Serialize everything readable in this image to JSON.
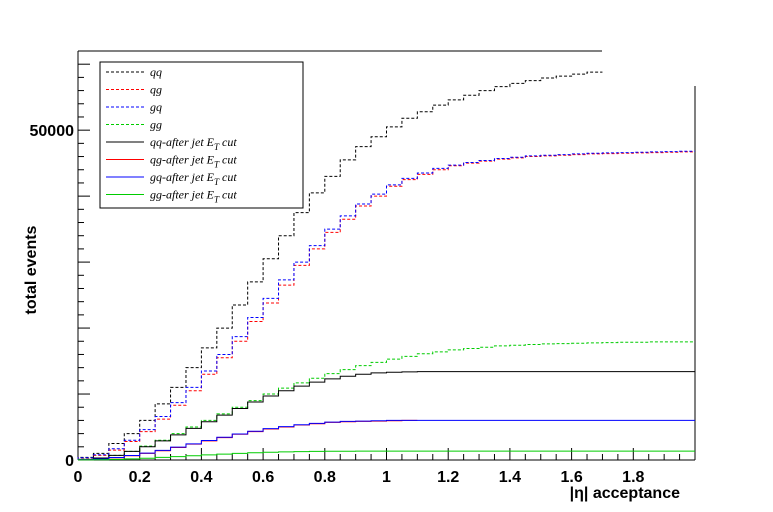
{
  "chart_data": {
    "type": "line",
    "xlabel": "|η|  acceptance",
    "ylabel": "total events",
    "xlim": [
      0,
      2
    ],
    "ylim": [
      0,
      62000
    ],
    "x_ticks": [
      "0",
      "0.2",
      "0.4",
      "0.6",
      "0.8",
      "1",
      "1.2",
      "1.4",
      "1.6",
      "1.8"
    ],
    "x_tick_values": [
      0,
      0.2,
      0.4,
      0.6,
      0.8,
      1.0,
      1.2,
      1.4,
      1.6,
      1.8
    ],
    "y_ticks": [
      "0",
      "50000"
    ],
    "y_tick_values": [
      0,
      50000
    ],
    "legend_position": "top-left",
    "series": [
      {
        "name": "qq",
        "color": "#000000",
        "dashed": true,
        "x": [
          0.05,
          0.1,
          0.15,
          0.2,
          0.25,
          0.3,
          0.35,
          0.4,
          0.45,
          0.5,
          0.55,
          0.6,
          0.65,
          0.7,
          0.75,
          0.8,
          0.85,
          0.9,
          0.95,
          1.0,
          1.05,
          1.1,
          1.15,
          1.2,
          1.25,
          1.3,
          1.35,
          1.4,
          1.45,
          1.5,
          1.55,
          1.6,
          1.65,
          1.7
        ],
        "y": [
          400,
          1000,
          2500,
          4000,
          6000,
          8500,
          11000,
          14000,
          17000,
          20000,
          23500,
          27000,
          30500,
          34000,
          37500,
          40500,
          43000,
          45500,
          47500,
          49000,
          50500,
          51800,
          52800,
          53800,
          54600,
          55300,
          56000,
          56600,
          57100,
          57500,
          57900,
          58200,
          58500,
          58800
        ]
      },
      {
        "name": "qg",
        "color": "#ff0000",
        "dashed": true,
        "x": [
          0.05,
          0.1,
          0.15,
          0.2,
          0.25,
          0.3,
          0.35,
          0.4,
          0.45,
          0.5,
          0.55,
          0.6,
          0.65,
          0.7,
          0.75,
          0.8,
          0.85,
          0.9,
          0.95,
          1.0,
          1.05,
          1.1,
          1.15,
          1.2,
          1.25,
          1.3,
          1.35,
          1.4,
          1.45,
          1.5,
          1.55,
          1.6,
          1.65,
          1.7,
          1.75,
          1.8,
          1.85,
          1.9,
          1.95,
          2.0
        ],
        "y": [
          300,
          700,
          1500,
          2800,
          4300,
          6200,
          8300,
          10500,
          13000,
          15500,
          18000,
          21000,
          23800,
          26500,
          29500,
          32000,
          34500,
          36500,
          38500,
          40000,
          41500,
          42500,
          43300,
          44000,
          44600,
          45000,
          45300,
          45600,
          45800,
          46000,
          46100,
          46200,
          46300,
          46400,
          46450,
          46500,
          46550,
          46600,
          46650,
          46700
        ]
      },
      {
        "name": "gq",
        "color": "#0000ff",
        "dashed": true,
        "x": [
          0.05,
          0.1,
          0.15,
          0.2,
          0.25,
          0.3,
          0.35,
          0.4,
          0.45,
          0.5,
          0.55,
          0.6,
          0.65,
          0.7,
          0.75,
          0.8,
          0.85,
          0.9,
          0.95,
          1.0,
          1.05,
          1.1,
          1.15,
          1.2,
          1.25,
          1.3,
          1.35,
          1.4,
          1.45,
          1.5,
          1.55,
          1.6,
          1.65,
          1.7,
          1.75,
          1.8,
          1.85,
          1.9,
          1.95,
          2.0
        ],
        "y": [
          350,
          800,
          1700,
          3000,
          4600,
          6600,
          8700,
          11000,
          13500,
          16000,
          18700,
          21600,
          24500,
          27300,
          30000,
          32500,
          35000,
          37000,
          38800,
          40300,
          41700,
          42700,
          43500,
          44200,
          44700,
          45100,
          45400,
          45700,
          45900,
          46100,
          46200,
          46300,
          46400,
          46500,
          46550,
          46600,
          46650,
          46700,
          46750,
          46800
        ]
      },
      {
        "name": "gg",
        "color": "#00cc00",
        "dashed": true,
        "x": [
          0.05,
          0.1,
          0.15,
          0.2,
          0.25,
          0.3,
          0.35,
          0.4,
          0.45,
          0.5,
          0.55,
          0.6,
          0.65,
          0.7,
          0.75,
          0.8,
          0.85,
          0.9,
          0.95,
          1.0,
          1.05,
          1.1,
          1.15,
          1.2,
          1.25,
          1.3,
          1.35,
          1.4,
          1.45,
          1.5,
          1.55,
          1.6,
          1.65,
          1.7,
          1.75,
          1.8,
          1.85,
          1.9,
          1.95,
          2.0
        ],
        "y": [
          100,
          300,
          700,
          1300,
          2100,
          3000,
          4000,
          5000,
          6000,
          7000,
          8000,
          9000,
          10000,
          10900,
          11700,
          12400,
          13100,
          13700,
          14300,
          14800,
          15300,
          15700,
          16100,
          16400,
          16700,
          16900,
          17100,
          17300,
          17400,
          17500,
          17600,
          17650,
          17700,
          17750,
          17800,
          17850,
          17850,
          17900,
          17900,
          17900
        ]
      },
      {
        "name": "qq-after jet E_T cut",
        "color": "#000000",
        "dashed": false,
        "x": [
          0.05,
          0.1,
          0.15,
          0.2,
          0.25,
          0.3,
          0.35,
          0.4,
          0.45,
          0.5,
          0.55,
          0.6,
          0.65,
          0.7,
          0.75,
          0.8,
          0.85,
          0.9,
          0.95,
          1.0,
          1.05,
          1.1,
          1.15,
          1.2,
          1.25,
          1.3,
          1.35,
          1.4,
          1.45,
          1.5,
          1.55,
          1.6,
          1.65,
          1.7,
          1.75,
          1.8,
          1.85,
          1.9,
          1.95,
          2.0
        ],
        "y": [
          100,
          300,
          700,
          1300,
          2000,
          2900,
          3800,
          4800,
          5800,
          6800,
          7800,
          8800,
          9700,
          10500,
          11200,
          11800,
          12300,
          12700,
          13000,
          13200,
          13300,
          13350,
          13400,
          13400,
          13400,
          13400,
          13400,
          13400,
          13400,
          13400,
          13400,
          13400,
          13400,
          13400,
          13400,
          13400,
          13400,
          13400,
          13400,
          13400
        ]
      },
      {
        "name": "qg-after jet E_T cut",
        "color": "#ff0000",
        "dashed": false,
        "x": [
          0.05,
          0.1,
          0.15,
          0.2,
          0.25,
          0.3,
          0.35,
          0.4,
          0.45,
          0.5,
          0.55,
          0.6,
          0.65,
          0.7,
          0.75,
          0.8,
          0.85,
          0.9,
          0.95,
          1.0,
          1.05,
          1.1
        ],
        "y": [
          50,
          150,
          350,
          650,
          1000,
          1400,
          1900,
          2400,
          2900,
          3400,
          3900,
          4300,
          4700,
          5000,
          5300,
          5500,
          5700,
          5800,
          5850,
          5900,
          5950,
          6000
        ]
      },
      {
        "name": "gq-after jet E_T cut",
        "color": "#0000ff",
        "dashed": false,
        "x": [
          0.05,
          0.1,
          0.15,
          0.2,
          0.25,
          0.3,
          0.35,
          0.4,
          0.45,
          0.5,
          0.55,
          0.6,
          0.65,
          0.7,
          0.75,
          0.8,
          0.85,
          0.9,
          0.95,
          1.0,
          1.05,
          1.1,
          1.15,
          1.2,
          1.25,
          1.3,
          1.35,
          1.4,
          1.45,
          1.5,
          1.55,
          1.6,
          1.65,
          1.7,
          1.75,
          1.8,
          1.85,
          1.9,
          1.95,
          2.0
        ],
        "y": [
          60,
          160,
          370,
          680,
          1050,
          1450,
          1950,
          2450,
          2950,
          3450,
          3950,
          4350,
          4750,
          5050,
          5350,
          5550,
          5750,
          5850,
          5900,
          5950,
          6000,
          6000,
          6000,
          6000,
          6000,
          6000,
          6000,
          6000,
          6000,
          6000,
          6000,
          6000,
          6000,
          6000,
          6000,
          6000,
          6000,
          6000,
          6000,
          6000
        ]
      },
      {
        "name": "gg-after jet E_T cut",
        "color": "#00cc00",
        "dashed": false,
        "x": [
          0.05,
          0.1,
          0.15,
          0.2,
          0.25,
          0.3,
          0.35,
          0.4,
          0.45,
          0.5,
          0.55,
          0.6,
          0.65,
          0.7,
          0.75,
          0.8,
          0.85,
          0.9,
          0.95,
          1.0,
          1.05,
          1.1,
          1.15,
          1.2,
          1.25,
          1.3,
          1.35,
          1.4,
          1.45,
          1.5,
          1.55,
          1.6,
          1.65,
          1.7,
          1.75,
          1.8,
          1.85,
          1.9,
          1.95,
          2.0
        ],
        "y": [
          10,
          40,
          90,
          170,
          270,
          390,
          520,
          650,
          780,
          900,
          1010,
          1100,
          1170,
          1230,
          1270,
          1300,
          1320,
          1330,
          1340,
          1340,
          1340,
          1340,
          1340,
          1340,
          1340,
          1340,
          1340,
          1340,
          1340,
          1340,
          1340,
          1340,
          1340,
          1340,
          1340,
          1340,
          1340,
          1340,
          1340,
          1340
        ]
      }
    ],
    "legend": [
      {
        "base": "qq",
        "suffix": "",
        "color": "#000000",
        "dashed": true
      },
      {
        "base": "qg",
        "suffix": "",
        "color": "#ff0000",
        "dashed": true
      },
      {
        "base": "gq",
        "suffix": "",
        "color": "#0000ff",
        "dashed": true
      },
      {
        "base": "gg",
        "suffix": "",
        "color": "#00cc00",
        "dashed": true
      },
      {
        "base": "qq-after jet E",
        "sub": "T",
        "suffix": " cut",
        "color": "#000000",
        "dashed": false
      },
      {
        "base": "qg-after jet E",
        "sub": "T",
        "suffix": " cut",
        "color": "#ff0000",
        "dashed": false
      },
      {
        "base": "gq-after jet E",
        "sub": "T",
        "suffix": " cut",
        "color": "#0000ff",
        "dashed": false
      },
      {
        "base": "gg-after jet E",
        "sub": "T",
        "suffix": " cut",
        "color": "#00cc00",
        "dashed": false
      }
    ]
  }
}
